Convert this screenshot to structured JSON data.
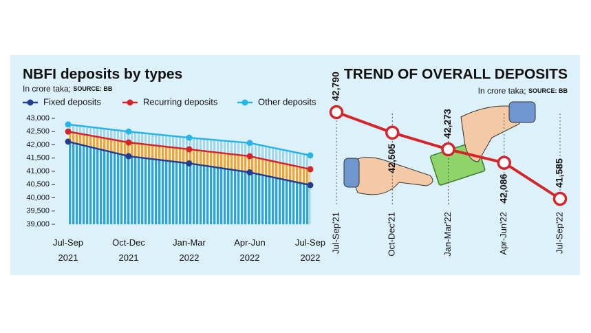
{
  "chart_data": [
    {
      "type": "line",
      "title": "NBFI deposits by types",
      "subtitle": "In crore taka;",
      "source": "SOURCE: BB",
      "categories": [
        [
          "Jul-Sep",
          "2021"
        ],
        [
          "Oct-Dec",
          "2021"
        ],
        [
          "Jan-Mar",
          "2022"
        ],
        [
          "Apr-Jun",
          "2022"
        ],
        [
          "Jul-Sep",
          "2022"
        ]
      ],
      "series": [
        {
          "name": "Fixed deposits",
          "color": "#263d8c",
          "values": [
            42120,
            41570,
            41300,
            40960,
            40480
          ]
        },
        {
          "name": "Recurring deposits",
          "color": "#d3262b",
          "values": [
            42500,
            42090,
            41830,
            41570,
            41080
          ]
        },
        {
          "name": "Other deposits",
          "color": "#27b4e6",
          "values": [
            42770,
            42500,
            42270,
            42070,
            41600
          ]
        }
      ],
      "ylim": [
        39000,
        43000
      ],
      "yticks": [
        {
          "value": 39000,
          "label": "39,000"
        },
        {
          "value": 39500,
          "label": "39,500"
        },
        {
          "value": 40000,
          "label": "40,000"
        },
        {
          "value": 40500,
          "label": "40,500"
        },
        {
          "value": 41000,
          "label": "41,000"
        },
        {
          "value": 41500,
          "label": "41,500"
        },
        {
          "value": 42000,
          "label": "42,000"
        },
        {
          "value": 42500,
          "label": "42,500"
        },
        {
          "value": 43000,
          "label": "43,000"
        }
      ]
    },
    {
      "type": "line",
      "title": "TREND OF OVERALL DEPOSITS",
      "subtitle": "In crore taka;",
      "source": "SOURCE: BB",
      "categories": [
        "Jul-Sep'21",
        "Oct-Dec'21",
        "Jan-Mar'22",
        "Apr-Jun'22",
        "Jul-Sep'22"
      ],
      "values": [
        42790,
        42505,
        42273,
        42086,
        41585
      ],
      "value_labels": [
        "42,790",
        "42,505",
        "42,273",
        "42,086",
        "41,585"
      ],
      "color": "#d3262b"
    }
  ]
}
